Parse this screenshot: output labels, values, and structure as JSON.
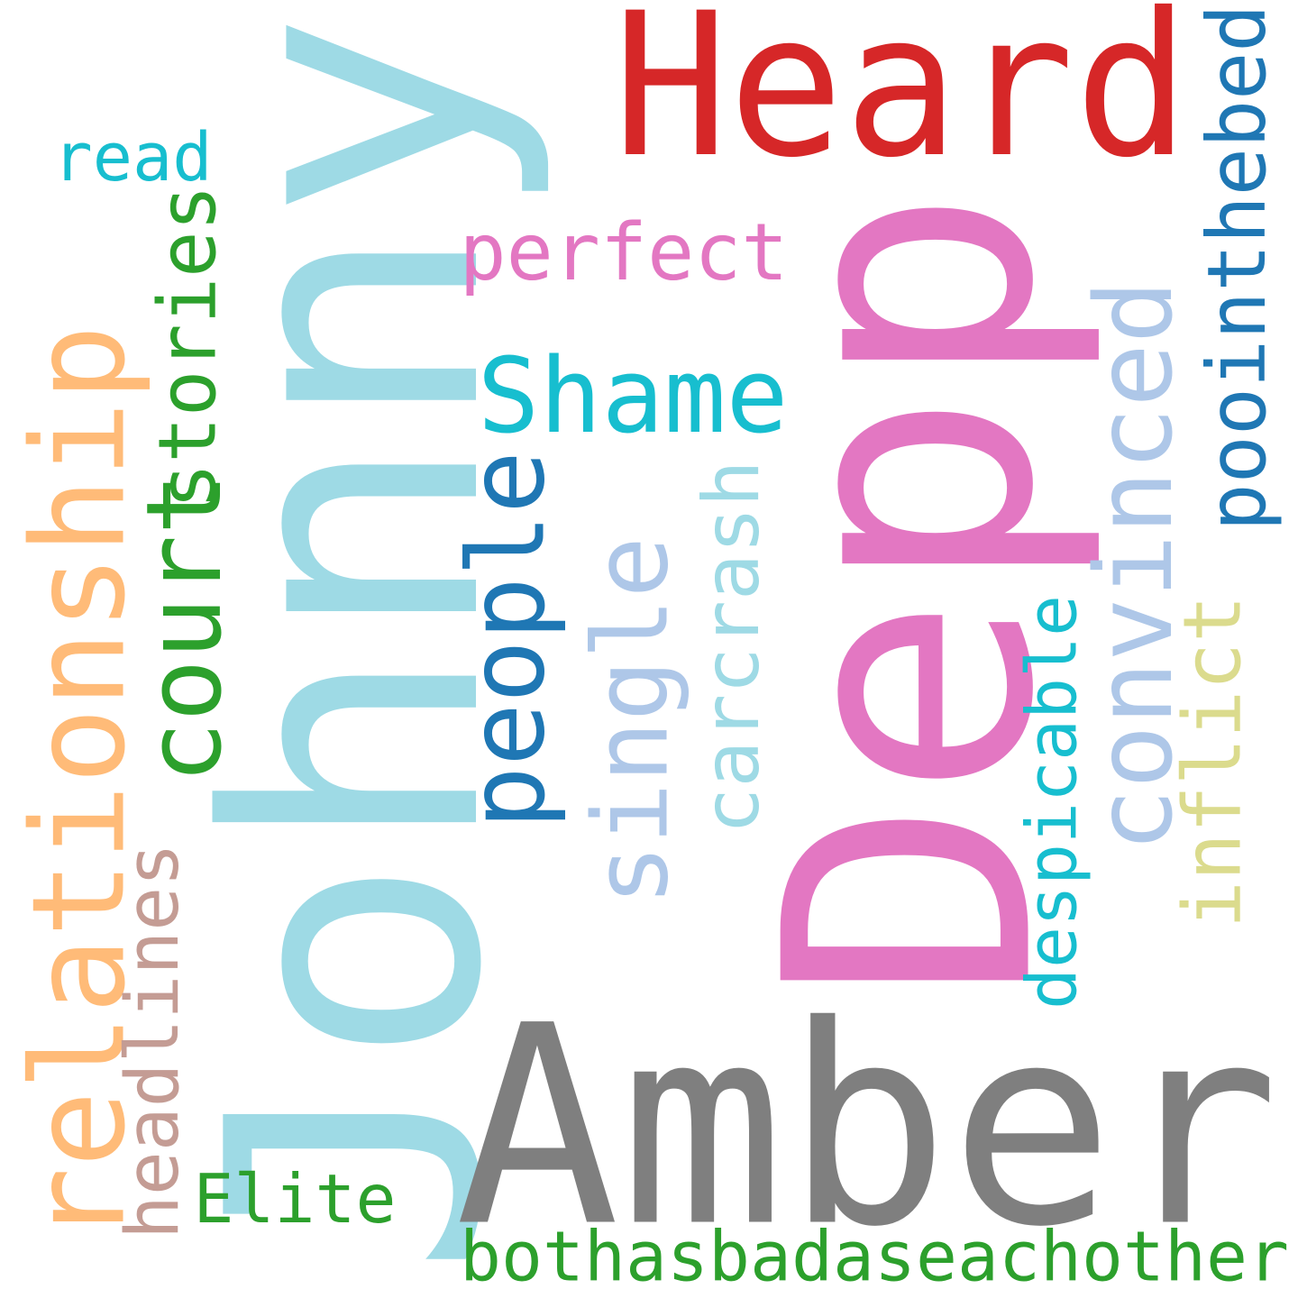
{
  "words": [
    {
      "text": "Johnny",
      "color": "#9edae5"
    },
    {
      "text": "Depp",
      "color": "#e377c2"
    },
    {
      "text": "Amber",
      "color": "#7f7f7f"
    },
    {
      "text": "Heard",
      "color": "#d62728"
    },
    {
      "text": "relationship",
      "color": "#ffbb78"
    },
    {
      "text": "court",
      "color": "#2ca02c"
    },
    {
      "text": "stories",
      "color": "#2ca02c"
    },
    {
      "text": "read",
      "color": "#17becf"
    },
    {
      "text": "perfect",
      "color": "#e377c2"
    },
    {
      "text": "Shame",
      "color": "#17becf"
    },
    {
      "text": "people",
      "color": "#1f77b4"
    },
    {
      "text": "single",
      "color": "#aec7e8"
    },
    {
      "text": "carcrash",
      "color": "#9edae5"
    },
    {
      "text": "convinced",
      "color": "#aec7e8"
    },
    {
      "text": "poointhebed",
      "color": "#1f77b4"
    },
    {
      "text": "inflict",
      "color": "#dbdb8d"
    },
    {
      "text": "despicable",
      "color": "#17becf"
    },
    {
      "text": "headlines",
      "color": "#c49c94"
    },
    {
      "text": "Elite",
      "color": "#2ca02c"
    },
    {
      "text": "bothasbadaseachother",
      "color": "#2ca02c"
    }
  ]
}
